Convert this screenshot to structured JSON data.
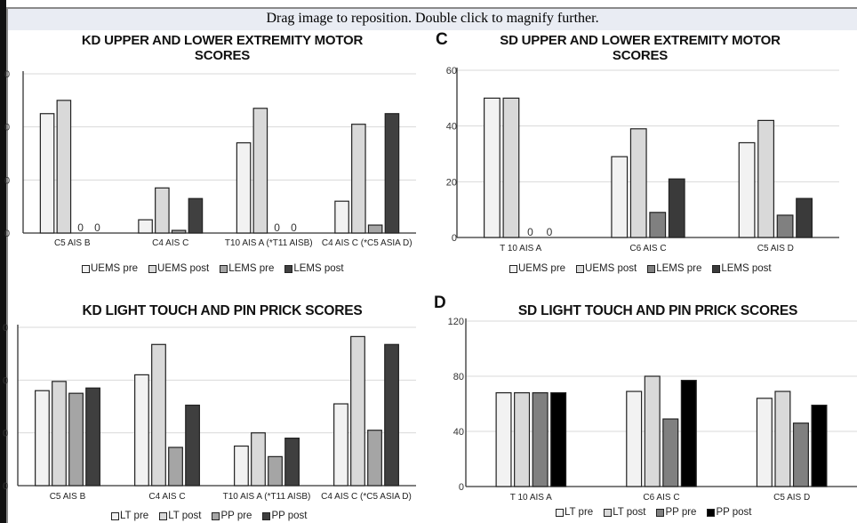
{
  "viewer": {
    "banner_text": "Drag image to reposition. Double click to magnify further."
  },
  "chart_data": [
    {
      "id": "A",
      "panel_label": "",
      "type": "bar",
      "title_line1": "KD UPPER AND LOWER EXTREMITY MOTOR",
      "title_line2": "SCORES",
      "categories": [
        "C5 AIS B",
        "C4 AIS C",
        "T10 AIS A (*T11 AISB)",
        "C4 AIS C (*C5 ASIA D)"
      ],
      "series": [
        {
          "name": "UEMS pre",
          "color": "#f2f2f2",
          "values": [
            45,
            5,
            34,
            12
          ]
        },
        {
          "name": "UEMS post",
          "color": "#d9d9d9",
          "values": [
            50,
            17,
            47,
            41
          ]
        },
        {
          "name": "LEMS pre",
          "color": "#a5a5a5",
          "values": [
            0,
            1,
            0,
            3
          ]
        },
        {
          "name": "LEMS post",
          "color": "#404040",
          "values": [
            0,
            13,
            0,
            45
          ]
        }
      ],
      "zero_labels": "0",
      "ylim": [
        0,
        60
      ],
      "yticks": [
        0,
        20,
        40,
        60
      ],
      "ytick_labels_visible": false,
      "grid": true,
      "legend": "bottom"
    },
    {
      "id": "C",
      "panel_label": "C",
      "type": "bar",
      "title_line1": "SD UPPER AND LOWER EXTREMITY MOTOR",
      "title_line2": "SCORES",
      "categories": [
        "T 10 AIS A",
        "C6 AIS C",
        "C5 AIS D"
      ],
      "series": [
        {
          "name": "UEMS pre",
          "color": "#f2f2f2",
          "values": [
            50,
            29,
            34
          ]
        },
        {
          "name": "UEMS post",
          "color": "#d9d9d9",
          "values": [
            50,
            39,
            42
          ]
        },
        {
          "name": "LEMS pre",
          "color": "#808080",
          "values": [
            0,
            9,
            8
          ]
        },
        {
          "name": "LEMS post",
          "color": "#3a3a3a",
          "values": [
            0,
            21,
            14
          ]
        }
      ],
      "zero_labels": "0",
      "ylim": [
        0,
        60
      ],
      "yticks": [
        0,
        20,
        40,
        60
      ],
      "ytick_labels_visible": true,
      "grid": true,
      "legend": "bottom"
    },
    {
      "id": "B",
      "panel_label": "",
      "type": "bar",
      "title_line1": "KD LIGHT TOUCH AND PIN PRICK SCORES",
      "title_line2": "",
      "categories": [
        "C5 AIS B",
        "C4 AIS C",
        "T10 AIS A (*T11 AISB)",
        "C4 AIS C (*C5 ASIA D)"
      ],
      "series": [
        {
          "name": "LT pre",
          "color": "#f2f2f2",
          "values": [
            72,
            84,
            30,
            62
          ]
        },
        {
          "name": "LT post",
          "color": "#d9d9d9",
          "values": [
            79,
            107,
            40,
            113
          ]
        },
        {
          "name": "PP pre",
          "color": "#a5a5a5",
          "values": [
            70,
            29,
            22,
            42
          ]
        },
        {
          "name": "PP post",
          "color": "#3f3f3f",
          "values": [
            74,
            61,
            36,
            107
          ]
        }
      ],
      "zero_labels": "",
      "ylim": [
        0,
        120
      ],
      "yticks": [
        0,
        40,
        80,
        120
      ],
      "ytick_labels_visible": false,
      "grid": true,
      "legend": "bottom"
    },
    {
      "id": "D",
      "panel_label": "D",
      "type": "bar",
      "title_line1": "SD LIGHT TOUCH AND PIN PRICK SCORES",
      "title_line2": "",
      "categories": [
        "T 10 AIS A",
        "C6 AIS C",
        "C5 AIS D"
      ],
      "series": [
        {
          "name": "LT pre",
          "color": "#f2f2f2",
          "values": [
            68,
            69,
            64
          ]
        },
        {
          "name": "LT post",
          "color": "#d9d9d9",
          "values": [
            68,
            80,
            69
          ]
        },
        {
          "name": "PP pre",
          "color": "#808080",
          "values": [
            68,
            49,
            46
          ]
        },
        {
          "name": "PP post",
          "color": "#000000",
          "values": [
            68,
            77,
            59
          ]
        }
      ],
      "zero_labels": "",
      "ylim": [
        0,
        120
      ],
      "yticks": [
        0,
        40,
        80,
        120
      ],
      "ytick_labels_visible": true,
      "grid": true,
      "legend": "bottom"
    }
  ]
}
